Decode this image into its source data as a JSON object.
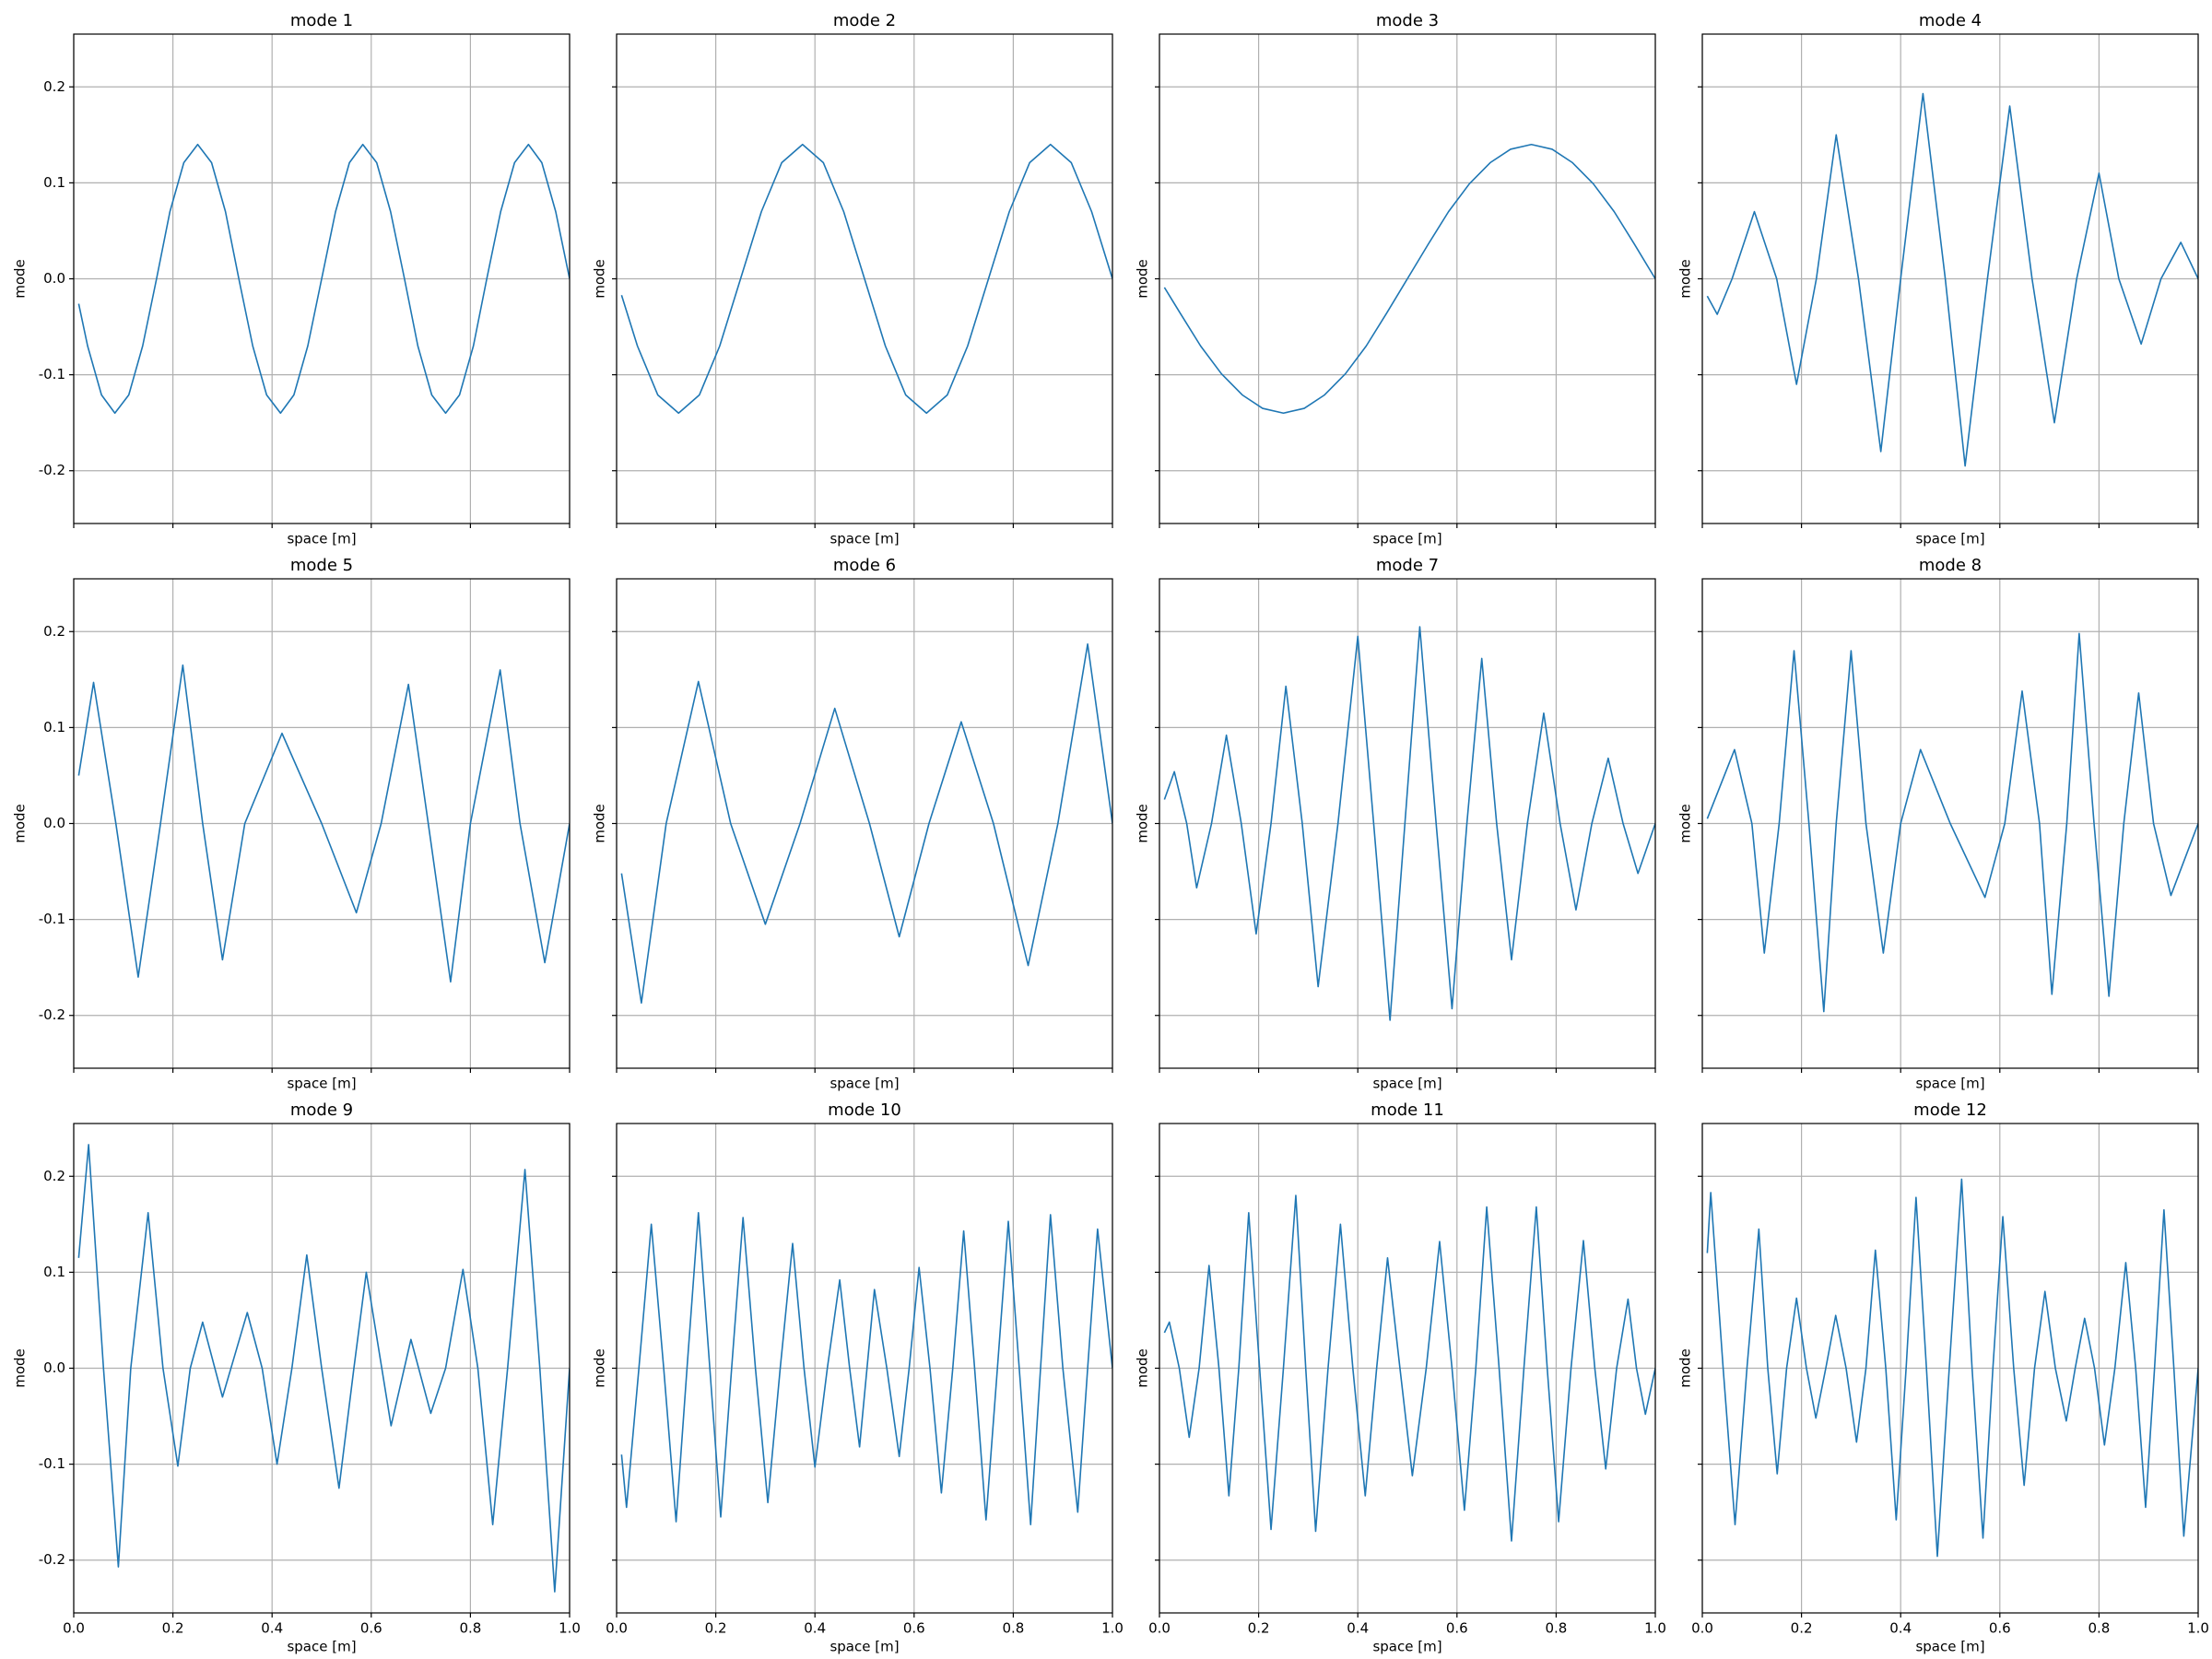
{
  "chart_data": [
    {
      "type": "line",
      "title": "mode 1",
      "x_label": "space [m]",
      "y_label": "mode",
      "xlim": [
        0,
        1
      ],
      "ylim": [
        -0.255,
        0.255
      ],
      "xticks": [
        0,
        0.2,
        0.4,
        0.6,
        0.8,
        1
      ],
      "yticks": [
        -0.2,
        -0.1,
        {
          "value": 0,
          "label": "0.0"
        },
        0.1,
        0.2
      ],
      "grid": true,
      "x": [
        0.01,
        0.028,
        0.056,
        0.083,
        0.111,
        0.139,
        0.167,
        0.194,
        0.222,
        0.25,
        0.278,
        0.306,
        0.333,
        0.361,
        0.389,
        0.417,
        0.444,
        0.472,
        0.5,
        0.528,
        0.556,
        0.583,
        0.611,
        0.639,
        0.667,
        0.694,
        0.722,
        0.75,
        0.778,
        0.806,
        0.833,
        0.861,
        0.889,
        0.917,
        0.944,
        0.972,
        1.0
      ],
      "series": [
        {
          "color": "#1f77b4",
          "values": [
            -0.026,
            -0.07,
            -0.121,
            -0.14,
            -0.121,
            -0.07,
            0,
            0.07,
            0.121,
            0.14,
            0.121,
            0.07,
            0,
            -0.07,
            -0.121,
            -0.14,
            -0.121,
            -0.07,
            0,
            0.07,
            0.121,
            0.14,
            0.121,
            0.07,
            0,
            -0.07,
            -0.121,
            -0.14,
            -0.121,
            -0.07,
            0,
            0.07,
            0.121,
            0.14,
            0.121,
            0.07,
            0
          ]
        }
      ]
    },
    {
      "type": "line",
      "title": "mode 2",
      "x_label": "space [m]",
      "y_label": "mode",
      "xlim": [
        0,
        1
      ],
      "ylim": [
        -0.255,
        0.255
      ],
      "xticks": [
        0,
        0.2,
        0.4,
        0.6,
        0.8,
        1
      ],
      "yticks": [
        -0.2,
        -0.1,
        0,
        0.1,
        0.2
      ],
      "grid": true,
      "x": [
        0.01,
        0.042,
        0.083,
        0.125,
        0.167,
        0.208,
        0.25,
        0.292,
        0.333,
        0.375,
        0.417,
        0.458,
        0.5,
        0.542,
        0.583,
        0.625,
        0.667,
        0.708,
        0.75,
        0.792,
        0.833,
        0.875,
        0.917,
        0.958,
        1.0
      ],
      "series": [
        {
          "color": "#1f77b4",
          "values": [
            -0.017,
            -0.07,
            -0.121,
            -0.14,
            -0.121,
            -0.07,
            0,
            0.07,
            0.121,
            0.14,
            0.121,
            0.07,
            0,
            -0.07,
            -0.121,
            -0.14,
            -0.121,
            -0.07,
            0,
            0.07,
            0.121,
            0.14,
            0.121,
            0.07,
            0
          ]
        }
      ]
    },
    {
      "type": "line",
      "title": "mode 3",
      "x_label": "space [m]",
      "y_label": "mode",
      "xlim": [
        0,
        1
      ],
      "ylim": [
        -0.255,
        0.255
      ],
      "xticks": [
        0,
        0.2,
        0.4,
        0.6,
        0.8,
        1
      ],
      "yticks": [
        -0.2,
        -0.1,
        0,
        0.1,
        0.2
      ],
      "grid": true,
      "x": [
        0.01,
        0.042,
        0.083,
        0.125,
        0.167,
        0.208,
        0.25,
        0.292,
        0.333,
        0.375,
        0.417,
        0.458,
        0.5,
        0.542,
        0.583,
        0.625,
        0.667,
        0.708,
        0.75,
        0.792,
        0.833,
        0.875,
        0.917,
        0.958,
        1.0
      ],
      "series": [
        {
          "color": "#1f77b4",
          "values": [
            -0.009,
            -0.036,
            -0.07,
            -0.099,
            -0.121,
            -0.135,
            -0.14,
            -0.135,
            -0.121,
            -0.099,
            -0.07,
            -0.036,
            0,
            0.036,
            0.07,
            0.099,
            0.121,
            0.135,
            0.14,
            0.135,
            0.121,
            0.099,
            0.07,
            0.036,
            0
          ]
        }
      ]
    },
    {
      "type": "line",
      "title": "mode 4",
      "x_label": "space [m]",
      "y_label": "mode",
      "xlim": [
        0,
        1
      ],
      "ylim": [
        -0.255,
        0.255
      ],
      "xticks": [
        0,
        0.2,
        0.4,
        0.6,
        0.8,
        1
      ],
      "yticks": [
        -0.2,
        -0.1,
        0,
        0.1,
        0.2
      ],
      "grid": true,
      "x": [
        0.01,
        0.03,
        0.06,
        0.105,
        0.15,
        0.19,
        0.23,
        0.27,
        0.315,
        0.36,
        0.4,
        0.445,
        0.49,
        0.53,
        0.575,
        0.62,
        0.665,
        0.71,
        0.755,
        0.8,
        0.84,
        0.885,
        0.925,
        0.965,
        1.0
      ],
      "series": [
        {
          "color": "#1f77b4",
          "values": [
            -0.018,
            -0.037,
            0,
            0.07,
            0,
            -0.11,
            0,
            0.15,
            0,
            -0.18,
            0,
            0.193,
            0,
            -0.195,
            0,
            0.18,
            0,
            -0.15,
            0,
            0.11,
            0,
            -0.068,
            0,
            0.038,
            0
          ]
        }
      ]
    },
    {
      "type": "line",
      "title": "mode 5",
      "x_label": "space [m]",
      "y_label": "mode",
      "xlim": [
        0,
        1
      ],
      "ylim": [
        -0.255,
        0.255
      ],
      "xticks": [
        0,
        0.2,
        0.4,
        0.6,
        0.8,
        1
      ],
      "yticks": [
        -0.2,
        -0.1,
        {
          "value": 0,
          "label": "0.0"
        },
        0.1,
        0.2
      ],
      "grid": true,
      "x": [
        0.01,
        0.04,
        0.085,
        0.13,
        0.175,
        0.22,
        0.26,
        0.3,
        0.345,
        0.42,
        0.5,
        0.57,
        0.62,
        0.675,
        0.715,
        0.76,
        0.8,
        0.86,
        0.9,
        0.95,
        1.0
      ],
      "series": [
        {
          "color": "#1f77b4",
          "values": [
            0.05,
            0.147,
            0,
            -0.16,
            0,
            0.165,
            0,
            -0.142,
            0,
            0.094,
            0,
            -0.093,
            0,
            0.145,
            0,
            -0.165,
            0,
            0.16,
            0,
            -0.145,
            0
          ]
        }
      ]
    },
    {
      "type": "line",
      "title": "mode 6",
      "x_label": "space [m]",
      "y_label": "mode",
      "xlim": [
        0,
        1
      ],
      "ylim": [
        -0.255,
        0.255
      ],
      "xticks": [
        0,
        0.2,
        0.4,
        0.6,
        0.8,
        1
      ],
      "yticks": [
        -0.2,
        -0.1,
        0,
        0.1,
        0.2
      ],
      "grid": true,
      "x": [
        0.01,
        0.05,
        0.1,
        0.165,
        0.23,
        0.3,
        0.37,
        0.44,
        0.51,
        0.57,
        0.63,
        0.695,
        0.76,
        0.83,
        0.89,
        0.95,
        1.0
      ],
      "series": [
        {
          "color": "#1f77b4",
          "values": [
            -0.052,
            -0.187,
            0,
            0.148,
            0,
            -0.105,
            0,
            0.12,
            0,
            -0.118,
            0,
            0.106,
            0,
            -0.148,
            0,
            0.187,
            0
          ]
        }
      ]
    },
    {
      "type": "line",
      "title": "mode 7",
      "x_label": "space [m]",
      "y_label": "mode",
      "xlim": [
        0,
        1
      ],
      "ylim": [
        -0.255,
        0.255
      ],
      "xticks": [
        0,
        0.2,
        0.4,
        0.6,
        0.8,
        1
      ],
      "yticks": [
        -0.2,
        -0.1,
        0,
        0.1,
        0.2
      ],
      "grid": true,
      "x": [
        0.01,
        0.03,
        0.055,
        0.075,
        0.105,
        0.135,
        0.165,
        0.195,
        0.225,
        0.255,
        0.288,
        0.32,
        0.36,
        0.4,
        0.432,
        0.465,
        0.495,
        0.525,
        0.558,
        0.59,
        0.62,
        0.65,
        0.68,
        0.71,
        0.742,
        0.775,
        0.808,
        0.84,
        0.872,
        0.905,
        0.935,
        0.965,
        1.0
      ],
      "series": [
        {
          "color": "#1f77b4",
          "values": [
            0.025,
            0.054,
            0,
            -0.067,
            0,
            0.092,
            0,
            -0.115,
            0,
            0.143,
            0,
            -0.17,
            0,
            0.195,
            0,
            -0.205,
            0,
            0.205,
            0,
            -0.193,
            0,
            0.172,
            0,
            -0.142,
            0,
            0.115,
            0,
            -0.09,
            0,
            0.068,
            0,
            -0.052,
            0
          ]
        }
      ]
    },
    {
      "type": "line",
      "title": "mode 8",
      "x_label": "space [m]",
      "y_label": "mode",
      "xlim": [
        0,
        1
      ],
      "ylim": [
        -0.255,
        0.255
      ],
      "xticks": [
        0,
        0.2,
        0.4,
        0.6,
        0.8,
        1
      ],
      "yticks": [
        -0.2,
        -0.1,
        0,
        0.1,
        0.2
      ],
      "grid": true,
      "x": [
        0.01,
        0.065,
        0.1,
        0.125,
        0.155,
        0.185,
        0.215,
        0.245,
        0.27,
        0.3,
        0.33,
        0.365,
        0.4,
        0.44,
        0.5,
        0.57,
        0.61,
        0.645,
        0.68,
        0.705,
        0.735,
        0.76,
        0.79,
        0.82,
        0.85,
        0.88,
        0.91,
        0.945,
        1.0
      ],
      "series": [
        {
          "color": "#1f77b4",
          "values": [
            0.005,
            0.077,
            0,
            -0.135,
            0,
            0.18,
            0,
            -0.196,
            0,
            0.18,
            0,
            -0.135,
            0,
            0.077,
            0,
            -0.077,
            0,
            0.138,
            0,
            -0.178,
            0,
            0.198,
            0,
            -0.18,
            0,
            0.136,
            0,
            -0.075,
            0
          ]
        }
      ]
    },
    {
      "type": "line",
      "title": "mode 9",
      "x_label": "space [m]",
      "y_label": "mode",
      "xlim": [
        0,
        1
      ],
      "ylim": [
        -0.255,
        0.255
      ],
      "xticks": [
        {
          "value": 0,
          "label": "0.0"
        },
        0.2,
        0.4,
        0.6,
        0.8,
        {
          "value": 1,
          "label": "1.0"
        }
      ],
      "yticks": [
        -0.2,
        -0.1,
        {
          "value": 0,
          "label": "0.0"
        },
        0.1,
        0.2
      ],
      "grid": true,
      "x": [
        0.01,
        0.03,
        0.06,
        0.09,
        0.115,
        0.15,
        0.18,
        0.21,
        0.235,
        0.26,
        0.3,
        0.35,
        0.38,
        0.41,
        0.44,
        0.47,
        0.5,
        0.535,
        0.565,
        0.59,
        0.64,
        0.68,
        0.72,
        0.75,
        0.785,
        0.815,
        0.845,
        0.875,
        0.91,
        0.94,
        0.97,
        1.0
      ],
      "series": [
        {
          "color": "#1f77b4",
          "values": [
            0.115,
            0.233,
            0,
            -0.207,
            0,
            0.162,
            0,
            -0.102,
            0,
            0.048,
            -0.03,
            0.058,
            0,
            -0.1,
            0,
            0.118,
            0,
            -0.125,
            0,
            0.1,
            -0.06,
            0.03,
            -0.047,
            0,
            0.103,
            0,
            -0.163,
            0,
            0.207,
            0,
            -0.233,
            0
          ]
        }
      ]
    },
    {
      "type": "line",
      "title": "mode 10",
      "x_label": "space [m]",
      "y_label": "mode",
      "xlim": [
        0,
        1
      ],
      "ylim": [
        -0.255,
        0.255
      ],
      "xticks": [
        {
          "value": 0,
          "label": "0.0"
        },
        0.2,
        0.4,
        0.6,
        0.8,
        {
          "value": 1,
          "label": "1.0"
        }
      ],
      "yticks": [
        -0.2,
        -0.1,
        0,
        0.1,
        0.2
      ],
      "grid": true,
      "x": [
        0.01,
        0.02,
        0.045,
        0.07,
        0.095,
        0.12,
        0.142,
        0.165,
        0.188,
        0.21,
        0.232,
        0.255,
        0.28,
        0.305,
        0.33,
        0.355,
        0.378,
        0.4,
        0.425,
        0.45,
        0.47,
        0.49,
        0.505,
        0.52,
        0.545,
        0.57,
        0.59,
        0.61,
        0.632,
        0.655,
        0.678,
        0.7,
        0.722,
        0.745,
        0.768,
        0.79,
        0.812,
        0.835,
        0.855,
        0.875,
        0.9,
        0.93,
        0.95,
        0.97,
        1.0
      ],
      "series": [
        {
          "color": "#1f77b4",
          "values": [
            -0.09,
            -0.145,
            0,
            0.15,
            0,
            -0.16,
            0,
            0.162,
            0,
            -0.155,
            0,
            0.157,
            0,
            -0.14,
            0,
            0.13,
            0,
            -0.103,
            0,
            0.092,
            0,
            -0.082,
            0,
            0.082,
            0,
            -0.092,
            0,
            0.105,
            0,
            -0.13,
            0,
            0.143,
            0,
            -0.158,
            0,
            0.153,
            0,
            -0.163,
            0,
            0.16,
            0,
            -0.15,
            0,
            0.145,
            0
          ]
        }
      ]
    },
    {
      "type": "line",
      "title": "mode 11",
      "x_label": "space [m]",
      "y_label": "mode",
      "xlim": [
        0,
        1
      ],
      "ylim": [
        -0.255,
        0.255
      ],
      "xticks": [
        {
          "value": 0,
          "label": "0.0"
        },
        0.2,
        0.4,
        0.6,
        0.8,
        {
          "value": 1,
          "label": "1.0"
        }
      ],
      "yticks": [
        -0.2,
        -0.1,
        0,
        0.1,
        0.2
      ],
      "grid": true,
      "x": [
        0.01,
        0.02,
        0.04,
        0.06,
        0.08,
        0.1,
        0.12,
        0.14,
        0.16,
        0.18,
        0.202,
        0.225,
        0.25,
        0.275,
        0.295,
        0.315,
        0.34,
        0.365,
        0.39,
        0.415,
        0.438,
        0.46,
        0.485,
        0.51,
        0.538,
        0.565,
        0.59,
        0.615,
        0.638,
        0.66,
        0.685,
        0.71,
        0.735,
        0.76,
        0.782,
        0.805,
        0.83,
        0.855,
        0.878,
        0.9,
        0.922,
        0.945,
        0.962,
        0.98,
        1.0
      ],
      "series": [
        {
          "color": "#1f77b4",
          "values": [
            0.037,
            0.048,
            0,
            -0.072,
            0,
            0.107,
            0,
            -0.133,
            0,
            0.162,
            0,
            -0.168,
            0,
            0.18,
            0,
            -0.17,
            0,
            0.15,
            0,
            -0.133,
            0,
            0.115,
            0,
            -0.112,
            0,
            0.132,
            0,
            -0.148,
            0,
            0.168,
            0,
            -0.18,
            0,
            0.168,
            0,
            -0.16,
            0,
            0.133,
            0,
            -0.105,
            0,
            0.072,
            0,
            -0.048,
            0
          ]
        }
      ]
    },
    {
      "type": "line",
      "title": "mode 12",
      "x_label": "space [m]",
      "y_label": "mode",
      "xlim": [
        0,
        1
      ],
      "ylim": [
        -0.255,
        0.255
      ],
      "xticks": [
        {
          "value": 0,
          "label": "0.0"
        },
        0.2,
        0.4,
        0.6,
        0.8,
        {
          "value": 1,
          "label": "1.0"
        }
      ],
      "yticks": [
        -0.2,
        -0.1,
        0,
        0.1,
        0.2
      ],
      "grid": true,
      "x": [
        0.01,
        0.017,
        0.042,
        0.066,
        0.09,
        0.114,
        0.132,
        0.151,
        0.17,
        0.19,
        0.21,
        0.229,
        0.249,
        0.269,
        0.29,
        0.311,
        0.33,
        0.349,
        0.37,
        0.391,
        0.411,
        0.431,
        0.452,
        0.474,
        0.498,
        0.523,
        0.544,
        0.566,
        0.586,
        0.606,
        0.628,
        0.649,
        0.67,
        0.691,
        0.712,
        0.734,
        0.752,
        0.771,
        0.791,
        0.811,
        0.832,
        0.854,
        0.874,
        0.894,
        0.912,
        0.931,
        0.951,
        0.971,
        1.0
      ],
      "series": [
        {
          "color": "#1f77b4",
          "values": [
            0.12,
            0.183,
            0,
            -0.163,
            0,
            0.145,
            0,
            -0.11,
            0,
            0.073,
            0,
            -0.052,
            0,
            0.055,
            0,
            -0.077,
            0,
            0.123,
            0,
            -0.158,
            0,
            0.178,
            0,
            -0.196,
            0,
            0.197,
            0,
            -0.177,
            0,
            0.158,
            0,
            -0.122,
            0,
            0.08,
            0,
            -0.055,
            0,
            0.052,
            0,
            -0.08,
            0,
            0.11,
            0,
            -0.145,
            0,
            0.165,
            0,
            -0.175,
            0
          ]
        }
      ]
    }
  ]
}
